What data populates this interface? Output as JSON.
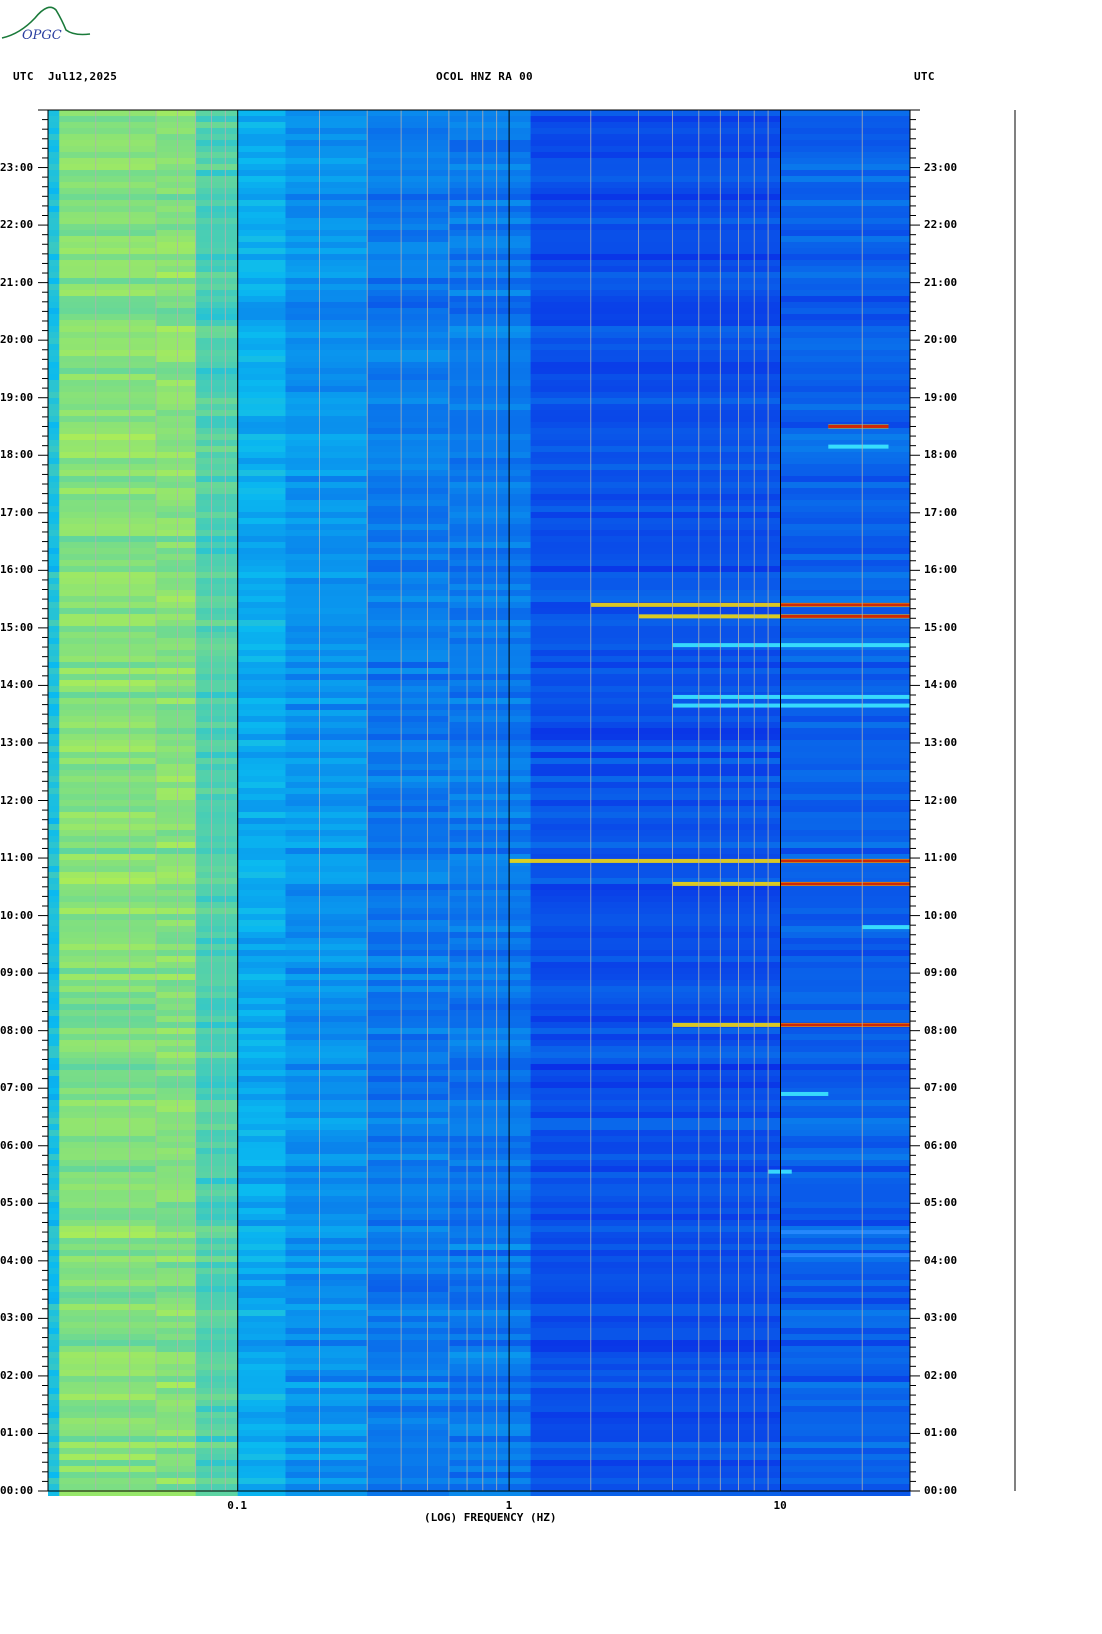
{
  "header": {
    "left_tz": "UTC",
    "date": "Jul12,2025",
    "station": "OCOL HNZ RA 00",
    "right_tz": "UTC"
  },
  "logo": {
    "text": "OPGC"
  },
  "colors": {
    "low": "#0020e0",
    "mid": "#00e0ff",
    "high": "#ffff00",
    "peak": "#cc0000"
  },
  "chart_data": {
    "type": "heatmap",
    "title": "OCOL HNZ RA 00",
    "xlabel": "(LOG) FREQUENCY (HZ)",
    "x_scale": "log",
    "xlim": [
      0.02,
      30
    ],
    "x_ticks": [
      {
        "value": 0.1,
        "label": "0.1"
      },
      {
        "value": 1,
        "label": "1"
      },
      {
        "value": 10,
        "label": "10"
      }
    ],
    "ylim_hours": [
      0,
      24
    ],
    "y_ticks": [
      {
        "hour": 0,
        "label": "00:00"
      },
      {
        "hour": 1,
        "label": "01:00"
      },
      {
        "hour": 2,
        "label": "02:00"
      },
      {
        "hour": 3,
        "label": "03:00"
      },
      {
        "hour": 4,
        "label": "04:00"
      },
      {
        "hour": 5,
        "label": "05:00"
      },
      {
        "hour": 6,
        "label": "06:00"
      },
      {
        "hour": 7,
        "label": "07:00"
      },
      {
        "hour": 8,
        "label": "08:00"
      },
      {
        "hour": 9,
        "label": "09:00"
      },
      {
        "hour": 10,
        "label": "10:00"
      },
      {
        "hour": 11,
        "label": "11:00"
      },
      {
        "hour": 12,
        "label": "12:00"
      },
      {
        "hour": 13,
        "label": "13:00"
      },
      {
        "hour": 14,
        "label": "14:00"
      },
      {
        "hour": 15,
        "label": "15:00"
      },
      {
        "hour": 16,
        "label": "16:00"
      },
      {
        "hour": 17,
        "label": "17:00"
      },
      {
        "hour": 18,
        "label": "18:00"
      },
      {
        "hour": 19,
        "label": "19:00"
      },
      {
        "hour": 20,
        "label": "20:00"
      },
      {
        "hour": 21,
        "label": "21:00"
      },
      {
        "hour": 22,
        "label": "22:00"
      },
      {
        "hour": 23,
        "label": "23:00"
      }
    ],
    "events": [
      {
        "hour": 15.4,
        "fmin": 2.0,
        "fmax": 30,
        "strength": "high"
      },
      {
        "hour": 15.2,
        "fmin": 3.0,
        "fmax": 30,
        "strength": "high"
      },
      {
        "hour": 14.7,
        "fmin": 4.0,
        "fmax": 30,
        "strength": "mid"
      },
      {
        "hour": 13.8,
        "fmin": 4.0,
        "fmax": 30,
        "strength": "mid"
      },
      {
        "hour": 13.65,
        "fmin": 4.0,
        "fmax": 30,
        "strength": "mid"
      },
      {
        "hour": 10.95,
        "fmin": 1.0,
        "fmax": 30,
        "strength": "high"
      },
      {
        "hour": 10.55,
        "fmin": 4.0,
        "fmax": 30,
        "strength": "high"
      },
      {
        "hour": 8.1,
        "fmin": 4.0,
        "fmax": 30,
        "strength": "high"
      },
      {
        "hour": 18.5,
        "fmin": 15,
        "fmax": 25,
        "strength": "high"
      },
      {
        "hour": 18.15,
        "fmin": 15,
        "fmax": 25,
        "strength": "mid"
      },
      {
        "hour": 9.8,
        "fmin": 20,
        "fmax": 30,
        "strength": "mid"
      },
      {
        "hour": 6.9,
        "fmin": 10,
        "fmax": 15,
        "strength": "mid"
      },
      {
        "hour": 5.55,
        "fmin": 9,
        "fmax": 11,
        "strength": "mid"
      },
      {
        "hour": 4.5,
        "fmin": 10,
        "fmax": 30,
        "strength": "low"
      },
      {
        "hour": 4.1,
        "fmin": 10,
        "fmax": 30,
        "strength": "low"
      }
    ]
  }
}
